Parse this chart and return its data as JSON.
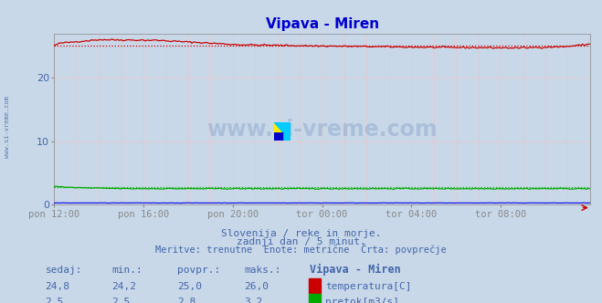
{
  "title": "Vipava - Miren",
  "title_color": "#0000cc",
  "bg_color": "#c8d8e8",
  "plot_bg_color": "#c8d8e8",
  "x_tick_labels": [
    "pon 12:00",
    "pon 16:00",
    "pon 20:00",
    "tor 00:00",
    "tor 04:00",
    "tor 08:00"
  ],
  "x_tick_positions": [
    0,
    48,
    96,
    144,
    192,
    240
  ],
  "n_points": 289,
  "ylim": [
    0,
    27
  ],
  "yticks": [
    0,
    10,
    20
  ],
  "grid_color": "#e8c8c8",
  "temp_color": "#cc0000",
  "flow_color": "#00aa00",
  "height_color": "#0000ee",
  "temp_avg": 25.0,
  "flow_avg": 2.8,
  "temp_sedaj": "24,8",
  "temp_min": "24,2",
  "temp_avg_str": "25,0",
  "temp_max": "26,0",
  "flow_sedaj": "2,5",
  "flow_min": "2,5",
  "flow_avg_str": "2,8",
  "flow_max": "3,2",
  "subtitle1": "Slovenija / reke in morje.",
  "subtitle2": "zadnji dan / 5 minut.",
  "subtitle3": "Meritve: trenutne  Enote: metrične  Črta: povprečje",
  "table_headers": [
    "sedaj:",
    "min.:",
    "povpr.:",
    "maks.:",
    "Vipava - Miren"
  ],
  "label_temp": "temperatura[C]",
  "label_flow": "pretok[m3/s]",
  "watermark": "www.si-vreme.com",
  "font_color": "#4466aa",
  "watermark_left": "www.si-vreme.com"
}
